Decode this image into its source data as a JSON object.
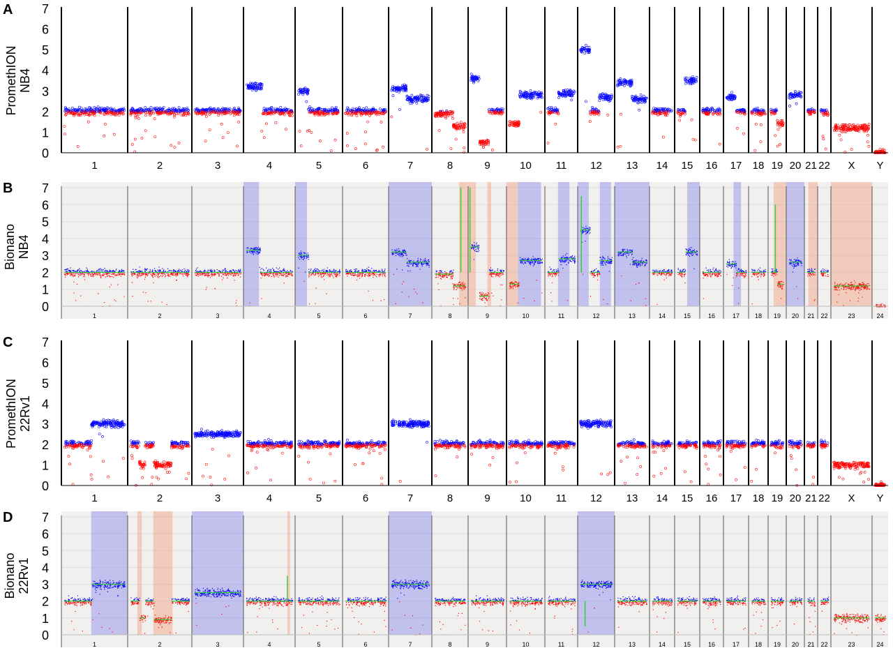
{
  "colors": {
    "high": "#0000ff",
    "low": "#ff0000",
    "call_line": "#33cc33",
    "gain_shade": "#8888ee",
    "loss_shade": "#f0a080",
    "bionano_bg": "#f2f0ee",
    "boundary": "#000000",
    "bionano_boundary": "#555555"
  },
  "chart_data": [
    {
      "type": "scatter",
      "panel_letter": "A",
      "style": "prometh",
      "ylabel_line1": "PromethION",
      "ylabel_line2": "NB4",
      "ylim": [
        0,
        7
      ],
      "y_ticks": [
        "0",
        "1",
        "2",
        "3",
        "4",
        "5",
        "6",
        "7"
      ],
      "chromosome_labels": [
        "1",
        "2",
        "3",
        "4",
        "5",
        "6",
        "7",
        "8",
        "9",
        "10",
        "11",
        "12",
        "13",
        "14",
        "15",
        "16",
        "17",
        "18",
        "19",
        "20",
        "21",
        "22",
        "X",
        "Y"
      ],
      "segments": [
        {
          "chr": "1",
          "cn": 2.0
        },
        {
          "chr": "2",
          "cn": 2.0
        },
        {
          "chr": "3",
          "cn": 2.0
        },
        {
          "chr": "4",
          "cn": 3.2,
          "until": 0.35
        },
        {
          "chr": "4",
          "cn": 2.0
        },
        {
          "chr": "5",
          "cn": 3.0,
          "until": 0.25
        },
        {
          "chr": "5",
          "cn": 2.0
        },
        {
          "chr": "6",
          "cn": 2.0
        },
        {
          "chr": "7",
          "cn": 3.1,
          "until": 0.4
        },
        {
          "chr": "7",
          "cn": 2.6
        },
        {
          "chr": "8",
          "cn": 1.9,
          "until": 0.6
        },
        {
          "chr": "8",
          "cn": 1.3
        },
        {
          "chr": "9",
          "cn": 3.6,
          "until": 0.25
        },
        {
          "chr": "9",
          "cn": 0.5,
          "until": 0.55
        },
        {
          "chr": "9",
          "cn": 2.0
        },
        {
          "chr": "10",
          "cn": 1.4,
          "until": 0.3
        },
        {
          "chr": "10",
          "cn": 2.8
        },
        {
          "chr": "11",
          "cn": 2.0,
          "until": 0.4
        },
        {
          "chr": "11",
          "cn": 2.9
        },
        {
          "chr": "12",
          "cn": 5.0,
          "until": 0.3
        },
        {
          "chr": "12",
          "cn": 2.0,
          "until": 0.6
        },
        {
          "chr": "12",
          "cn": 2.7
        },
        {
          "chr": "13",
          "cn": 3.4,
          "until": 0.5
        },
        {
          "chr": "13",
          "cn": 2.6
        },
        {
          "chr": "14",
          "cn": 2.0
        },
        {
          "chr": "15",
          "cn": 2.0,
          "until": 0.4
        },
        {
          "chr": "15",
          "cn": 3.5
        },
        {
          "chr": "16",
          "cn": 2.0
        },
        {
          "chr": "17",
          "cn": 2.7,
          "until": 0.5
        },
        {
          "chr": "17",
          "cn": 2.0
        },
        {
          "chr": "18",
          "cn": 2.0
        },
        {
          "chr": "19",
          "cn": 2.0,
          "until": 0.5
        },
        {
          "chr": "19",
          "cn": 1.4
        },
        {
          "chr": "20",
          "cn": 2.8
        },
        {
          "chr": "21",
          "cn": 2.0
        },
        {
          "chr": "22",
          "cn": 2.0
        },
        {
          "chr": "X",
          "cn": 1.2
        },
        {
          "chr": "Y",
          "cn": 0.0
        }
      ]
    },
    {
      "type": "scatter",
      "panel_letter": "B",
      "style": "bionano",
      "ylabel_line1": "Bionano",
      "ylabel_line2": "NB4",
      "ylim": [
        0,
        7
      ],
      "y_ticks": [
        "0",
        "1",
        "2",
        "3",
        "4",
        "5",
        "6",
        "7"
      ],
      "chromosome_labels": [
        "1",
        "2",
        "3",
        "4",
        "5",
        "6",
        "7",
        "8",
        "9",
        "10",
        "11",
        "12",
        "13",
        "14",
        "15",
        "16",
        "17",
        "18",
        "19",
        "20",
        "21",
        "22",
        "23",
        "24"
      ],
      "segments": [
        {
          "chr": "1",
          "cn": 2.0
        },
        {
          "chr": "2",
          "cn": 2.0
        },
        {
          "chr": "3",
          "cn": 2.0
        },
        {
          "chr": "4",
          "cn": 3.3,
          "until": 0.3
        },
        {
          "chr": "4",
          "cn": 2.0
        },
        {
          "chr": "5",
          "cn": 3.0,
          "until": 0.25
        },
        {
          "chr": "5",
          "cn": 2.0
        },
        {
          "chr": "6",
          "cn": 2.0
        },
        {
          "chr": "7",
          "cn": 3.2,
          "until": 0.4
        },
        {
          "chr": "7",
          "cn": 2.6
        },
        {
          "chr": "8",
          "cn": 1.9,
          "until": 0.6
        },
        {
          "chr": "8",
          "cn": 1.2
        },
        {
          "chr": "9",
          "cn": 3.5,
          "until": 0.25
        },
        {
          "chr": "9",
          "cn": 0.6,
          "until": 0.55
        },
        {
          "chr": "9",
          "cn": 2.0
        },
        {
          "chr": "10",
          "cn": 1.3,
          "until": 0.3
        },
        {
          "chr": "10",
          "cn": 2.7
        },
        {
          "chr": "11",
          "cn": 2.0,
          "until": 0.4
        },
        {
          "chr": "11",
          "cn": 2.8
        },
        {
          "chr": "12",
          "cn": 4.5,
          "until": 0.3
        },
        {
          "chr": "12",
          "cn": 2.0,
          "until": 0.6
        },
        {
          "chr": "12",
          "cn": 2.7
        },
        {
          "chr": "13",
          "cn": 3.2,
          "until": 0.5
        },
        {
          "chr": "13",
          "cn": 2.6
        },
        {
          "chr": "14",
          "cn": 2.0
        },
        {
          "chr": "15",
          "cn": 2.0,
          "until": 0.4
        },
        {
          "chr": "15",
          "cn": 3.2
        },
        {
          "chr": "16",
          "cn": 2.0
        },
        {
          "chr": "17",
          "cn": 2.5,
          "until": 0.5
        },
        {
          "chr": "17",
          "cn": 2.0
        },
        {
          "chr": "18",
          "cn": 2.0
        },
        {
          "chr": "19",
          "cn": 2.0,
          "until": 0.5
        },
        {
          "chr": "19",
          "cn": 1.3
        },
        {
          "chr": "20",
          "cn": 2.6
        },
        {
          "chr": "21",
          "cn": 2.0
        },
        {
          "chr": "22",
          "cn": 2.0
        },
        {
          "chr": "23",
          "cn": 1.2
        },
        {
          "chr": "24",
          "cn": 0.0
        }
      ],
      "shaded_regions": [
        {
          "chr": "4",
          "start": 0.0,
          "end": 0.3,
          "kind": "gain"
        },
        {
          "chr": "5",
          "start": 0.0,
          "end": 0.25,
          "kind": "gain"
        },
        {
          "chr": "7",
          "start": 0.0,
          "end": 1.0,
          "kind": "gain"
        },
        {
          "chr": "8",
          "start": 0.75,
          "end": 1.0,
          "kind": "loss"
        },
        {
          "chr": "9",
          "start": 0.0,
          "end": 0.2,
          "kind": "loss"
        },
        {
          "chr": "9",
          "start": 0.5,
          "end": 0.6,
          "kind": "loss"
        },
        {
          "chr": "10",
          "start": 0.0,
          "end": 0.3,
          "kind": "loss"
        },
        {
          "chr": "10",
          "start": 0.3,
          "end": 0.9,
          "kind": "gain"
        },
        {
          "chr": "11",
          "start": 0.4,
          "end": 0.75,
          "kind": "gain"
        },
        {
          "chr": "12",
          "start": 0.0,
          "end": 0.3,
          "kind": "gain"
        },
        {
          "chr": "12",
          "start": 0.6,
          "end": 0.9,
          "kind": "gain"
        },
        {
          "chr": "13",
          "start": 0.0,
          "end": 1.0,
          "kind": "gain"
        },
        {
          "chr": "15",
          "start": 0.5,
          "end": 1.0,
          "kind": "gain"
        },
        {
          "chr": "17",
          "start": 0.4,
          "end": 0.7,
          "kind": "gain"
        },
        {
          "chr": "19",
          "start": 0.3,
          "end": 1.0,
          "kind": "loss"
        },
        {
          "chr": "20",
          "start": 0.0,
          "end": 1.0,
          "kind": "gain"
        },
        {
          "chr": "21",
          "start": 0.3,
          "end": 1.0,
          "kind": "loss"
        },
        {
          "chr": "23",
          "start": 0.0,
          "end": 1.0,
          "kind": "loss"
        }
      ],
      "green_spikes": [
        {
          "chr": "8",
          "pos": 0.8,
          "cn": 7.0
        },
        {
          "chr": "9",
          "pos": 0.05,
          "cn": 7.0
        },
        {
          "chr": "12",
          "pos": 0.1,
          "cn": 6.5
        },
        {
          "chr": "19",
          "pos": 0.4,
          "cn": 6.0
        }
      ]
    },
    {
      "type": "scatter",
      "panel_letter": "C",
      "style": "prometh",
      "ylabel_line1": "PromethION",
      "ylabel_line2": "22Rv1",
      "ylim": [
        0,
        7
      ],
      "y_ticks": [
        "0",
        "1",
        "2",
        "3",
        "4",
        "5",
        "6",
        "7"
      ],
      "chromosome_labels": [
        "1",
        "2",
        "3",
        "4",
        "5",
        "6",
        "7",
        "8",
        "9",
        "10",
        "11",
        "12",
        "13",
        "14",
        "15",
        "16",
        "17",
        "18",
        "19",
        "20",
        "21",
        "22",
        "X",
        "Y"
      ],
      "segments": [
        {
          "chr": "1",
          "cn": 2.0,
          "until": 0.45
        },
        {
          "chr": "1",
          "cn": 3.0
        },
        {
          "chr": "2",
          "cn": 2.0,
          "until": 0.15
        },
        {
          "chr": "2",
          "cn": 1.0,
          "until": 0.25
        },
        {
          "chr": "2",
          "cn": 2.0,
          "until": 0.4
        },
        {
          "chr": "2",
          "cn": 1.0,
          "until": 0.7
        },
        {
          "chr": "2",
          "cn": 2.0
        },
        {
          "chr": "3",
          "cn": 2.5
        },
        {
          "chr": "4",
          "cn": 2.0
        },
        {
          "chr": "5",
          "cn": 2.0
        },
        {
          "chr": "6",
          "cn": 2.0
        },
        {
          "chr": "7",
          "cn": 3.0
        },
        {
          "chr": "8",
          "cn": 2.0
        },
        {
          "chr": "9",
          "cn": 2.0
        },
        {
          "chr": "10",
          "cn": 2.0
        },
        {
          "chr": "11",
          "cn": 2.0
        },
        {
          "chr": "12",
          "cn": 3.0
        },
        {
          "chr": "13",
          "cn": 2.0
        },
        {
          "chr": "14",
          "cn": 2.0
        },
        {
          "chr": "15",
          "cn": 2.0
        },
        {
          "chr": "16",
          "cn": 2.0
        },
        {
          "chr": "17",
          "cn": 2.0
        },
        {
          "chr": "18",
          "cn": 2.0
        },
        {
          "chr": "19",
          "cn": 2.0
        },
        {
          "chr": "20",
          "cn": 2.0
        },
        {
          "chr": "21",
          "cn": 2.0
        },
        {
          "chr": "22",
          "cn": 2.0
        },
        {
          "chr": "X",
          "cn": 1.0
        },
        {
          "chr": "Y",
          "cn": 0.0
        }
      ]
    },
    {
      "type": "scatter",
      "panel_letter": "D",
      "style": "bionano",
      "ylabel_line1": "Bionano",
      "ylabel_line2": "22Rv1",
      "ylim": [
        0,
        7
      ],
      "y_ticks": [
        "0",
        "1",
        "2",
        "3",
        "4",
        "5",
        "6",
        "7"
      ],
      "chromosome_labels": [
        "1",
        "2",
        "3",
        "4",
        "5",
        "6",
        "7",
        "8",
        "9",
        "10",
        "11",
        "12",
        "13",
        "14",
        "15",
        "16",
        "17",
        "18",
        "19",
        "20",
        "21",
        "22",
        "23",
        "24"
      ],
      "segments": [
        {
          "chr": "1",
          "cn": 2.0,
          "until": 0.45
        },
        {
          "chr": "1",
          "cn": 3.0
        },
        {
          "chr": "2",
          "cn": 2.0,
          "until": 0.15
        },
        {
          "chr": "2",
          "cn": 1.0,
          "until": 0.25
        },
        {
          "chr": "2",
          "cn": 2.0,
          "until": 0.4
        },
        {
          "chr": "2",
          "cn": 0.9,
          "until": 0.7
        },
        {
          "chr": "2",
          "cn": 2.0
        },
        {
          "chr": "3",
          "cn": 2.5
        },
        {
          "chr": "4",
          "cn": 2.0
        },
        {
          "chr": "5",
          "cn": 2.0
        },
        {
          "chr": "6",
          "cn": 2.0
        },
        {
          "chr": "7",
          "cn": 3.0
        },
        {
          "chr": "8",
          "cn": 2.0
        },
        {
          "chr": "9",
          "cn": 2.0
        },
        {
          "chr": "10",
          "cn": 2.0
        },
        {
          "chr": "11",
          "cn": 2.0
        },
        {
          "chr": "12",
          "cn": 3.0
        },
        {
          "chr": "13",
          "cn": 2.0
        },
        {
          "chr": "14",
          "cn": 2.0
        },
        {
          "chr": "15",
          "cn": 2.0
        },
        {
          "chr": "16",
          "cn": 2.0
        },
        {
          "chr": "17",
          "cn": 2.0
        },
        {
          "chr": "18",
          "cn": 2.0
        },
        {
          "chr": "19",
          "cn": 2.0
        },
        {
          "chr": "20",
          "cn": 2.0
        },
        {
          "chr": "21",
          "cn": 2.0
        },
        {
          "chr": "22",
          "cn": 2.0
        },
        {
          "chr": "23",
          "cn": 1.0
        },
        {
          "chr": "24",
          "cn": 1.0
        }
      ],
      "shaded_regions": [
        {
          "chr": "1",
          "start": 0.45,
          "end": 1.0,
          "kind": "gain"
        },
        {
          "chr": "2",
          "start": 0.15,
          "end": 0.22,
          "kind": "loss"
        },
        {
          "chr": "2",
          "start": 0.4,
          "end": 0.7,
          "kind": "loss"
        },
        {
          "chr": "3",
          "start": 0.0,
          "end": 1.0,
          "kind": "gain"
        },
        {
          "chr": "4",
          "start": 0.85,
          "end": 0.9,
          "kind": "loss"
        },
        {
          "chr": "7",
          "start": 0.0,
          "end": 1.0,
          "kind": "gain"
        },
        {
          "chr": "12",
          "start": 0.0,
          "end": 1.0,
          "kind": "gain"
        }
      ],
      "green_spikes": [
        {
          "chr": "4",
          "pos": 0.85,
          "cn": 3.5
        },
        {
          "chr": "12",
          "pos": 0.2,
          "cn": 0.5
        }
      ]
    }
  ]
}
